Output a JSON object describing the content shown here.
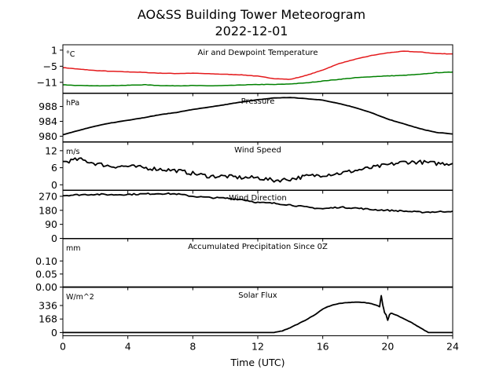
{
  "figure": {
    "title_line1": "AO&SS Building Tower Meteorogram",
    "title_line2": "2022-12-01"
  },
  "chart_data": [
    {
      "type": "line",
      "title": "Air and Dewpoint Temperature",
      "unit_label": "°C",
      "ylim": [
        -15,
        3
      ],
      "yticks": [
        1,
        -5,
        -11
      ],
      "ytick_labels": [
        "1",
        "−5",
        "−11"
      ],
      "series": [
        {
          "color": "#e41a1c",
          "x": [
            0,
            1,
            2,
            3,
            4,
            5,
            6,
            7,
            8,
            9,
            10,
            11,
            12,
            13,
            14,
            15,
            16,
            17,
            18,
            19,
            20,
            21,
            22,
            23,
            24
          ],
          "values": [
            -5.5,
            -6.1,
            -6.6,
            -6.9,
            -7.1,
            -7.3,
            -7.6,
            -7.7,
            -7.6,
            -7.8,
            -8.0,
            -8.2,
            -8.7,
            -9.6,
            -9.9,
            -8.4,
            -6.4,
            -4.0,
            -2.4,
            -1.0,
            0.0,
            0.6,
            0.3,
            -0.3,
            -0.4
          ]
        },
        {
          "color": "#008000",
          "x": [
            0,
            1,
            2,
            3,
            4,
            5,
            6,
            7,
            8,
            9,
            10,
            11,
            12,
            13,
            14,
            15,
            16,
            17,
            18,
            19,
            20,
            21,
            22,
            23,
            24
          ],
          "values": [
            -11.9,
            -12.2,
            -12.3,
            -12.2,
            -12.1,
            -11.9,
            -12.2,
            -12.3,
            -12.2,
            -12.3,
            -12.2,
            -12.0,
            -11.8,
            -11.8,
            -11.6,
            -11.2,
            -10.5,
            -9.9,
            -9.3,
            -8.9,
            -8.6,
            -8.4,
            -8.0,
            -7.4,
            -7.2
          ]
        }
      ]
    },
    {
      "type": "line",
      "title": "Pressure",
      "unit_label": "hPa",
      "ylim": [
        978.5,
        991.5
      ],
      "yticks": [
        988,
        984,
        980
      ],
      "ytick_labels": [
        "988",
        "984",
        "980"
      ],
      "series": [
        {
          "color": "#000000",
          "x": [
            0,
            1,
            2,
            3,
            4,
            5,
            6,
            7,
            8,
            9,
            10,
            11,
            12,
            13,
            14,
            15,
            16,
            17,
            18,
            19,
            20,
            21,
            22,
            23,
            24
          ],
          "values": [
            980.4,
            981.6,
            982.7,
            983.6,
            984.3,
            985.0,
            985.8,
            986.4,
            987.2,
            987.8,
            988.5,
            989.2,
            989.8,
            990.3,
            990.4,
            990.1,
            989.7,
            988.8,
            987.7,
            986.3,
            984.6,
            983.3,
            982.0,
            981.0,
            980.6
          ]
        }
      ]
    },
    {
      "type": "line",
      "title": "Wind Speed",
      "unit_label": "m/s",
      "ylim": [
        -2,
        15
      ],
      "yticks": [
        12,
        6,
        0
      ],
      "ytick_labels": [
        "12",
        "6",
        "0"
      ],
      "series": [
        {
          "color": "#000000",
          "x": [
            0,
            1,
            2,
            3,
            4,
            5,
            6,
            7,
            8,
            9,
            10,
            11,
            12,
            13,
            14,
            15,
            16,
            17,
            18,
            19,
            20,
            21,
            22,
            23,
            24
          ],
          "values": [
            8,
            9,
            7.5,
            6.5,
            6.5,
            6,
            5.5,
            5,
            4,
            3,
            3,
            2.5,
            2.5,
            1.5,
            2,
            3,
            3.5,
            4,
            5,
            6,
            7,
            8,
            8,
            7.5,
            7.5
          ]
        }
      ]
    },
    {
      "type": "line",
      "title": "Wind Direction",
      "ylim": [
        0,
        310
      ],
      "yticks": [
        270,
        180,
        90,
        0
      ],
      "ytick_labels": [
        "270",
        "180",
        "90",
        "0"
      ],
      "series": [
        {
          "color": "#000000",
          "x": [
            0,
            1,
            2,
            3,
            4,
            5,
            6,
            7,
            8,
            9,
            10,
            11,
            12,
            13,
            14,
            15,
            16,
            17,
            18,
            19,
            20,
            21,
            22,
            23,
            24
          ],
          "values": [
            275,
            280,
            283,
            280,
            282,
            285,
            288,
            285,
            270,
            262,
            258,
            250,
            230,
            225,
            215,
            200,
            190,
            200,
            195,
            185,
            180,
            175,
            168,
            170,
            175
          ]
        }
      ]
    },
    {
      "type": "line",
      "title": "Accumulated Precipitation Since 0Z",
      "unit_label": "mm",
      "ylim": [
        0,
        0.185
      ],
      "yticks": [
        0.1,
        0.05,
        0.0
      ],
      "ytick_labels": [
        "0.10",
        "0.05",
        "0.00"
      ],
      "series": [
        {
          "color": "#000000",
          "x": [
            0,
            24
          ],
          "values": [
            0,
            0
          ]
        }
      ]
    },
    {
      "type": "line",
      "title": "Solar Flux",
      "unit_label": "W/m^2",
      "ylim": [
        -40,
        560
      ],
      "yticks": [
        336,
        168,
        0
      ],
      "ytick_labels": [
        "336",
        "168",
        "0"
      ],
      "xlim": [
        0,
        24
      ],
      "xticks": [
        0,
        4,
        8,
        12,
        16,
        20,
        24
      ],
      "xtick_labels": [
        "0",
        "4",
        "8",
        "12",
        "16",
        "20",
        "24"
      ],
      "xlabel": "Time (UTC)",
      "series": [
        {
          "color": "#000000",
          "x": [
            0,
            13.0,
            13.5,
            14,
            14.5,
            15,
            15.5,
            16,
            16.3,
            16.6,
            16.8,
            17,
            17.5,
            18,
            18.5,
            19.0,
            19.3,
            19.5,
            19.6,
            19.7,
            19.8,
            19.9,
            20.0,
            20.1,
            20.2,
            20.5,
            21,
            21.5,
            22,
            22.5,
            24
          ],
          "values": [
            0,
            0,
            20,
            60,
            110,
            160,
            220,
            290,
            320,
            340,
            350,
            360,
            372,
            378,
            374,
            360,
            340,
            320,
            460,
            340,
            250,
            220,
            150,
            220,
            240,
            220,
            170,
            120,
            60,
            0,
            0
          ]
        }
      ]
    }
  ]
}
